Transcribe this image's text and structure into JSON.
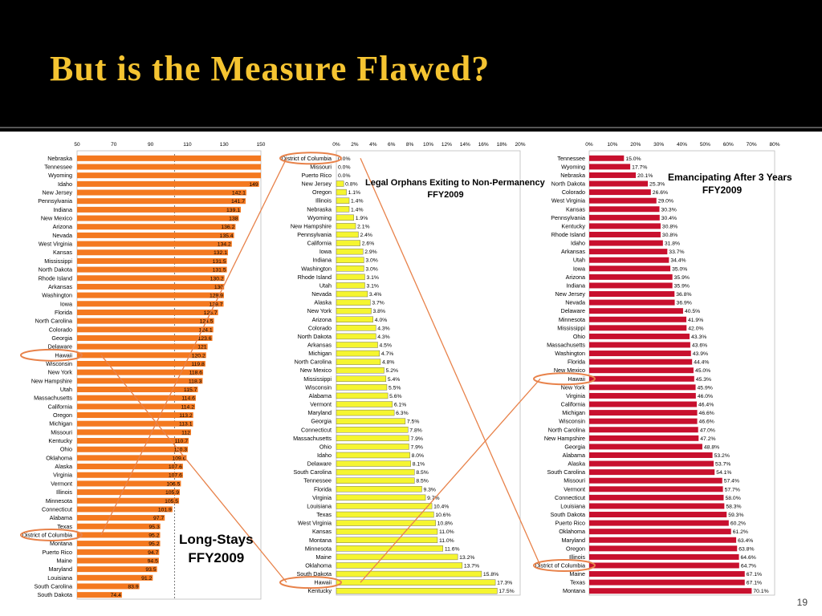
{
  "slide": {
    "title": "But is the Measure Flawed?",
    "number": "19"
  },
  "colors": {
    "orange": "#f47920",
    "yellow": "#f5f530",
    "red": "#c8102e",
    "highlight": "#e8824a",
    "title_text": "#f5c431"
  },
  "chart_data": [
    {
      "type": "bar",
      "orientation": "horizontal",
      "title": [
        "Long-Stays",
        "FFY2009"
      ],
      "xlim": [
        50,
        150
      ],
      "xticks": [
        "50",
        "70",
        "90",
        "110",
        "130",
        "150"
      ],
      "reference_line": 103,
      "highlighted": [
        "Hawaii",
        "District of Columbia"
      ],
      "categories": [
        "Nebraska",
        "Tennessee",
        "Wyoming",
        "Idaho",
        "New Jersey",
        "Pennsylvania",
        "Indiana",
        "New Mexico",
        "Arizona",
        "Nevada",
        "West Virginia",
        "Kansas",
        "Mississippi",
        "North Dakota",
        "Rhode Island",
        "Arkansas",
        "Washington",
        "Iowa",
        "Florida",
        "North Carolina",
        "Colorado",
        "Georgia",
        "Delaware",
        "Hawaii",
        "Wisconsin",
        "New York",
        "New Hampshire",
        "Utah",
        "Massachusetts",
        "California",
        "Oregon",
        "Michigan",
        "Missouri",
        "Kentucky",
        "Ohio",
        "Oklahoma",
        "Alaska",
        "Virginia",
        "Vermont",
        "Illinois",
        "Minnesota",
        "Connecticut",
        "Alabama",
        "Texas",
        "District of Columbia",
        "Montana",
        "Puerto Rico",
        "Maine",
        "Maryland",
        "Louisiana",
        "South Carolina",
        "South Dakota"
      ],
      "values": [
        null,
        null,
        null,
        149,
        142.1,
        141.7,
        139.1,
        138,
        136.2,
        135.4,
        134.2,
        132.1,
        131.5,
        131.5,
        130.2,
        130,
        129.9,
        129.7,
        126.7,
        124.5,
        124.1,
        123.6,
        121,
        120.2,
        119.8,
        118.6,
        118.3,
        115.7,
        114.6,
        114.2,
        113.2,
        113.1,
        112,
        110.7,
        110.3,
        109.6,
        107.6,
        107.6,
        106.5,
        105.9,
        105.5,
        101.9,
        97.7,
        95.3,
        95.2,
        95.2,
        94.7,
        94.5,
        93.5,
        91.2,
        83.9,
        74.4
      ],
      "labels": [
        "",
        "",
        "",
        "149",
        "142.1",
        "141.7",
        "139.1",
        "138",
        "136.2",
        "135.4",
        "134.2",
        "132.1",
        "131.5",
        "131.5",
        "130.2",
        "130",
        "129.9",
        "129.7",
        "126.7",
        "124.5",
        "124.1",
        "123.6",
        "121",
        "120.2",
        "119.8",
        "118.6",
        "118.3",
        "115.7",
        "114.6",
        "114.2",
        "113.2",
        "113.1",
        "112",
        "110.7",
        "110.3",
        "109.6",
        "107.6",
        "107.6",
        "106.5",
        "105.9",
        "105.5",
        "101.9",
        "97.7",
        "95.3",
        "95.2",
        "95.2",
        "94.7",
        "94.5",
        "93.5",
        "91.2",
        "83.9",
        "74.4"
      ]
    },
    {
      "type": "bar",
      "orientation": "horizontal",
      "title": [
        "Legal Orphans Exiting to Non-Permanency",
        "FFY2009"
      ],
      "xlim": [
        0,
        20
      ],
      "xticks": [
        "0%",
        "2%",
        "4%",
        "6%",
        "8%",
        "10%",
        "12%",
        "14%",
        "16%",
        "18%",
        "20%"
      ],
      "highlighted": [
        "District of Columbia",
        "Hawaii"
      ],
      "categories": [
        "District of Columbia",
        "Missouri",
        "Puerto Rico",
        "New Jersey",
        "Oregon",
        "Illinois",
        "Nebraska",
        "Wyoming",
        "New Hampshire",
        "Pennsylvania",
        "California",
        "Iowa",
        "Indiana",
        "Washington",
        "Rhode Island",
        "Utah",
        "Nevada",
        "Alaska",
        "New York",
        "Arizona",
        "Colorado",
        "North Dakota",
        "Arkansas",
        "Michigan",
        "North Carolina",
        "New Mexico",
        "Mississippi",
        "Wisconsin",
        "Alabama",
        "Vermont",
        "Maryland",
        "Georgia",
        "Connecticut",
        "Massachusetts",
        "Ohio",
        "Idaho",
        "Delaware",
        "South Carolina",
        "Tennessee",
        "Florida",
        "Virginia",
        "Louisiana",
        "Texas",
        "West Virginia",
        "Kansas",
        "Montana",
        "Minnesota",
        "Maine",
        "Oklahoma",
        "South Dakota",
        "Hawaii",
        "Kentucky"
      ],
      "values": [
        0.0,
        0.0,
        0.0,
        0.8,
        1.1,
        1.4,
        1.4,
        1.9,
        2.1,
        2.4,
        2.6,
        2.9,
        3.0,
        3.0,
        3.1,
        3.1,
        3.4,
        3.7,
        3.8,
        4.0,
        4.3,
        4.3,
        4.5,
        4.7,
        4.8,
        5.2,
        5.4,
        5.5,
        5.6,
        6.1,
        6.3,
        7.5,
        7.8,
        7.9,
        7.9,
        8.0,
        8.1,
        8.5,
        8.5,
        9.3,
        9.7,
        10.4,
        10.6,
        10.8,
        11.0,
        11.0,
        11.6,
        13.2,
        13.7,
        15.8,
        17.3,
        17.5
      ],
      "labels": [
        "0.0%",
        "0.0%",
        "0.0%",
        "0.8%",
        "1.1%",
        "1.4%",
        "1.4%",
        "1.9%",
        "2.1%",
        "2.4%",
        "2.6%",
        "2.9%",
        "3.0%",
        "3.0%",
        "3.1%",
        "3.1%",
        "3.4%",
        "3.7%",
        "3.8%",
        "4.0%",
        "4.3%",
        "4.3%",
        "4.5%",
        "4.7%",
        "4.8%",
        "5.2%",
        "5.4%",
        "5.5%",
        "5.6%",
        "6.1%",
        "6.3%",
        "7.5%",
        "7.8%",
        "7.9%",
        "7.9%",
        "8.0%",
        "8.1%",
        "8.5%",
        "8.5%",
        "9.3%",
        "9.7%",
        "10.4%",
        "10.6%",
        "10.8%",
        "11.0%",
        "11.0%",
        "11.6%",
        "13.2%",
        "13.7%",
        "15.8%",
        "17.3%",
        "17.5%"
      ]
    },
    {
      "type": "bar",
      "orientation": "horizontal",
      "title": [
        "Emancipating After 3 Years",
        "FFY2009"
      ],
      "xlim": [
        0,
        80
      ],
      "xticks": [
        "0%",
        "10%",
        "20%",
        "30%",
        "40%",
        "50%",
        "60%",
        "70%",
        "80%"
      ],
      "highlighted": [
        "Hawaii",
        "District of Columbia"
      ],
      "categories": [
        "Tennessee",
        "Wyoming",
        "Nebraska",
        "North Dakota",
        "Colorado",
        "West Virginia",
        "Kansas",
        "Pennsylvania",
        "Kentucky",
        "Rhode Island",
        "Idaho",
        "Arkansas",
        "Utah",
        "Iowa",
        "Arizona",
        "Indiana",
        "New Jersey",
        "Nevada",
        "Delaware",
        "Minnesota",
        "Mississippi",
        "Ohio",
        "Massachusetts",
        "Washington",
        "Florida",
        "New Mexico",
        "Hawaii",
        "New York",
        "Virginia",
        "California",
        "Michigan",
        "Wisconsin",
        "North Carolina",
        "New Hampshire",
        "Georgia",
        "Alabama",
        "Alaska",
        "South Carolina",
        "Missouri",
        "Vermont",
        "Connecticut",
        "Louisiana",
        "South Dakota",
        "Puerto Rico",
        "Oklahoma",
        "Maryland",
        "Oregon",
        "Illinois",
        "District of Columbia",
        "Maine",
        "Texas",
        "Montana"
      ],
      "values": [
        15.0,
        17.7,
        20.1,
        25.3,
        26.6,
        29.0,
        30.3,
        30.4,
        30.8,
        30.8,
        31.8,
        33.7,
        34.4,
        35.0,
        35.9,
        35.9,
        36.8,
        36.9,
        40.5,
        41.9,
        42.0,
        43.3,
        43.6,
        43.9,
        44.4,
        45.0,
        45.3,
        45.9,
        46.0,
        46.4,
        46.6,
        46.6,
        47.0,
        47.2,
        48.8,
        53.2,
        53.7,
        54.1,
        57.4,
        57.7,
        58.0,
        58.3,
        59.3,
        60.2,
        61.2,
        63.4,
        63.8,
        64.6,
        64.7,
        67.1,
        67.1,
        70.1
      ],
      "labels": [
        "15.0%",
        "17.7%",
        "20.1%",
        "25.3%",
        "26.6%",
        "29.0%",
        "30.3%",
        "30.4%",
        "30.8%",
        "30.8%",
        "31.8%",
        "33.7%",
        "34.4%",
        "35.0%",
        "35.9%",
        "35.9%",
        "36.8%",
        "36.9%",
        "40.5%",
        "41.9%",
        "42.0%",
        "43.3%",
        "43.6%",
        "43.9%",
        "44.4%",
        "45.0%",
        "45.3%",
        "45.9%",
        "46.0%",
        "46.4%",
        "46.6%",
        "46.6%",
        "47.0%",
        "47.2%",
        "48.8%",
        "53.2%",
        "53.7%",
        "54.1%",
        "57.4%",
        "57.7%",
        "58.0%",
        "58.3%",
        "59.3%",
        "60.2%",
        "61.2%",
        "63.4%",
        "63.8%",
        "64.6%",
        "64.7%",
        "67.1%",
        "67.1%",
        "70.1%"
      ]
    }
  ]
}
